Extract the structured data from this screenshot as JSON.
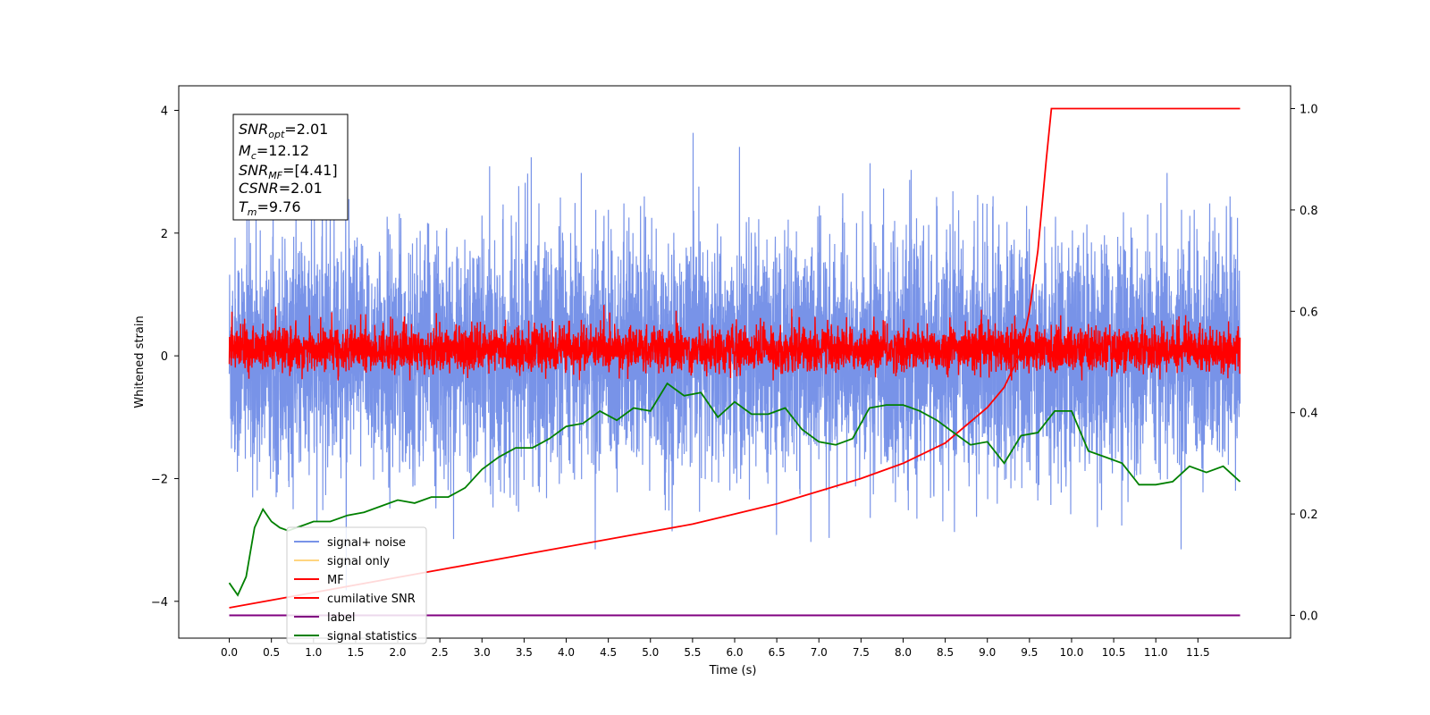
{
  "chart_data": {
    "type": "line",
    "xlabel": "Time (s)",
    "ylabel": "Whitened strain",
    "xlim": [
      -0.6,
      12.6
    ],
    "ylim_left": [
      -4.6,
      4.4
    ],
    "ylim_right": [
      -0.045,
      1.045
    ],
    "x_ticks": [
      "0.0",
      "0.5",
      "1.0",
      "1.5",
      "2.0",
      "2.5",
      "3.0",
      "3.5",
      "4.0",
      "4.5",
      "5.0",
      "5.5",
      "6.0",
      "6.5",
      "7.0",
      "7.5",
      "8.0",
      "8.5",
      "9.0",
      "9.5",
      "10.0",
      "10.5",
      "11.0",
      "11.5"
    ],
    "y_ticks_left": [
      "4",
      "2",
      "0",
      "−2",
      "−4"
    ],
    "y_ticks_right": [
      "1.0",
      "0.8",
      "0.6",
      "0.4",
      "0.2",
      "0.0"
    ],
    "grid": false,
    "legend_position": "lower-left",
    "legend": [
      "signal+ noise",
      "signal only",
      "MF",
      "cumilative SNR",
      "label",
      "signal statistics"
    ],
    "info_box": {
      "snr_opt": "=2.01",
      "mc": "=12.12",
      "snr_mf": "=[4.41]",
      "csnr": "=2.01",
      "tm": "=9.76"
    },
    "series": [
      {
        "name": "signal+ noise",
        "color": "#7893e8",
        "axis": "left",
        "note_range": [
          -2.6,
          2.6
        ],
        "x_range": [
          0,
          12
        ]
      },
      {
        "name": "signal only",
        "color": "#ffd580",
        "axis": "left",
        "values": []
      },
      {
        "name": "MF",
        "color": "#ff0000",
        "axis": "left",
        "note_range": [
          -0.4,
          0.8
        ],
        "x_range": [
          0,
          12
        ]
      },
      {
        "name": "cumilative SNR",
        "color": "#ff0000",
        "axis": "right",
        "x": [
          0,
          0.5,
          1,
          1.5,
          2,
          2.5,
          3,
          3.5,
          4,
          4.5,
          5,
          5.5,
          6,
          6.5,
          7,
          7.5,
          8,
          8.5,
          9,
          9.2,
          9.4,
          9.5,
          9.6,
          9.7,
          9.76,
          10,
          11,
          12
        ],
        "y": [
          0.015,
          0.03,
          0.045,
          0.06,
          0.075,
          0.09,
          0.105,
          0.12,
          0.135,
          0.15,
          0.165,
          0.18,
          0.2,
          0.22,
          0.245,
          0.27,
          0.3,
          0.34,
          0.41,
          0.45,
          0.52,
          0.6,
          0.72,
          0.9,
          1.0,
          1.0,
          1.0,
          1.0
        ]
      },
      {
        "name": "label",
        "color": "#800080",
        "axis": "right",
        "x": [
          0,
          12
        ],
        "y": [
          0.0,
          0.0
        ]
      },
      {
        "name": "signal statistics",
        "color": "#008000",
        "axis": "left",
        "x": [
          0,
          0.1,
          0.2,
          0.3,
          0.4,
          0.5,
          0.6,
          0.7,
          0.8,
          0.9,
          1.0,
          1.2,
          1.4,
          1.6,
          1.8,
          2.0,
          2.2,
          2.4,
          2.6,
          2.8,
          3.0,
          3.2,
          3.4,
          3.6,
          3.8,
          4.0,
          4.2,
          4.4,
          4.6,
          4.8,
          5.0,
          5.2,
          5.4,
          5.6,
          5.8,
          6.0,
          6.2,
          6.4,
          6.6,
          6.8,
          7.0,
          7.2,
          7.4,
          7.6,
          7.8,
          8.0,
          8.2,
          8.4,
          8.6,
          8.8,
          9.0,
          9.2,
          9.4,
          9.6,
          9.8,
          10.0,
          10.2,
          10.4,
          10.6,
          10.8,
          11.0,
          11.2,
          11.4,
          11.6,
          11.8,
          12.0
        ],
        "y": [
          -3.7,
          -3.9,
          -3.6,
          -2.8,
          -2.5,
          -2.7,
          -2.8,
          -2.85,
          -2.8,
          -2.75,
          -2.7,
          -2.7,
          -2.6,
          -2.55,
          -2.45,
          -2.35,
          -2.4,
          -2.3,
          -2.3,
          -2.15,
          -1.85,
          -1.65,
          -1.5,
          -1.5,
          -1.35,
          -1.15,
          -1.1,
          -0.9,
          -1.05,
          -0.85,
          -0.9,
          -0.45,
          -0.65,
          -0.6,
          -1.0,
          -0.75,
          -0.95,
          -0.95,
          -0.85,
          -1.2,
          -1.4,
          -1.45,
          -1.35,
          -0.85,
          -0.8,
          -0.8,
          -0.9,
          -1.05,
          -1.25,
          -1.45,
          -1.4,
          -1.75,
          -1.3,
          -1.25,
          -0.9,
          -0.9,
          -1.55,
          -1.65,
          -1.75,
          -2.1,
          -2.1,
          -2.05,
          -1.8,
          -1.9,
          -1.8,
          -2.05
        ]
      }
    ]
  }
}
